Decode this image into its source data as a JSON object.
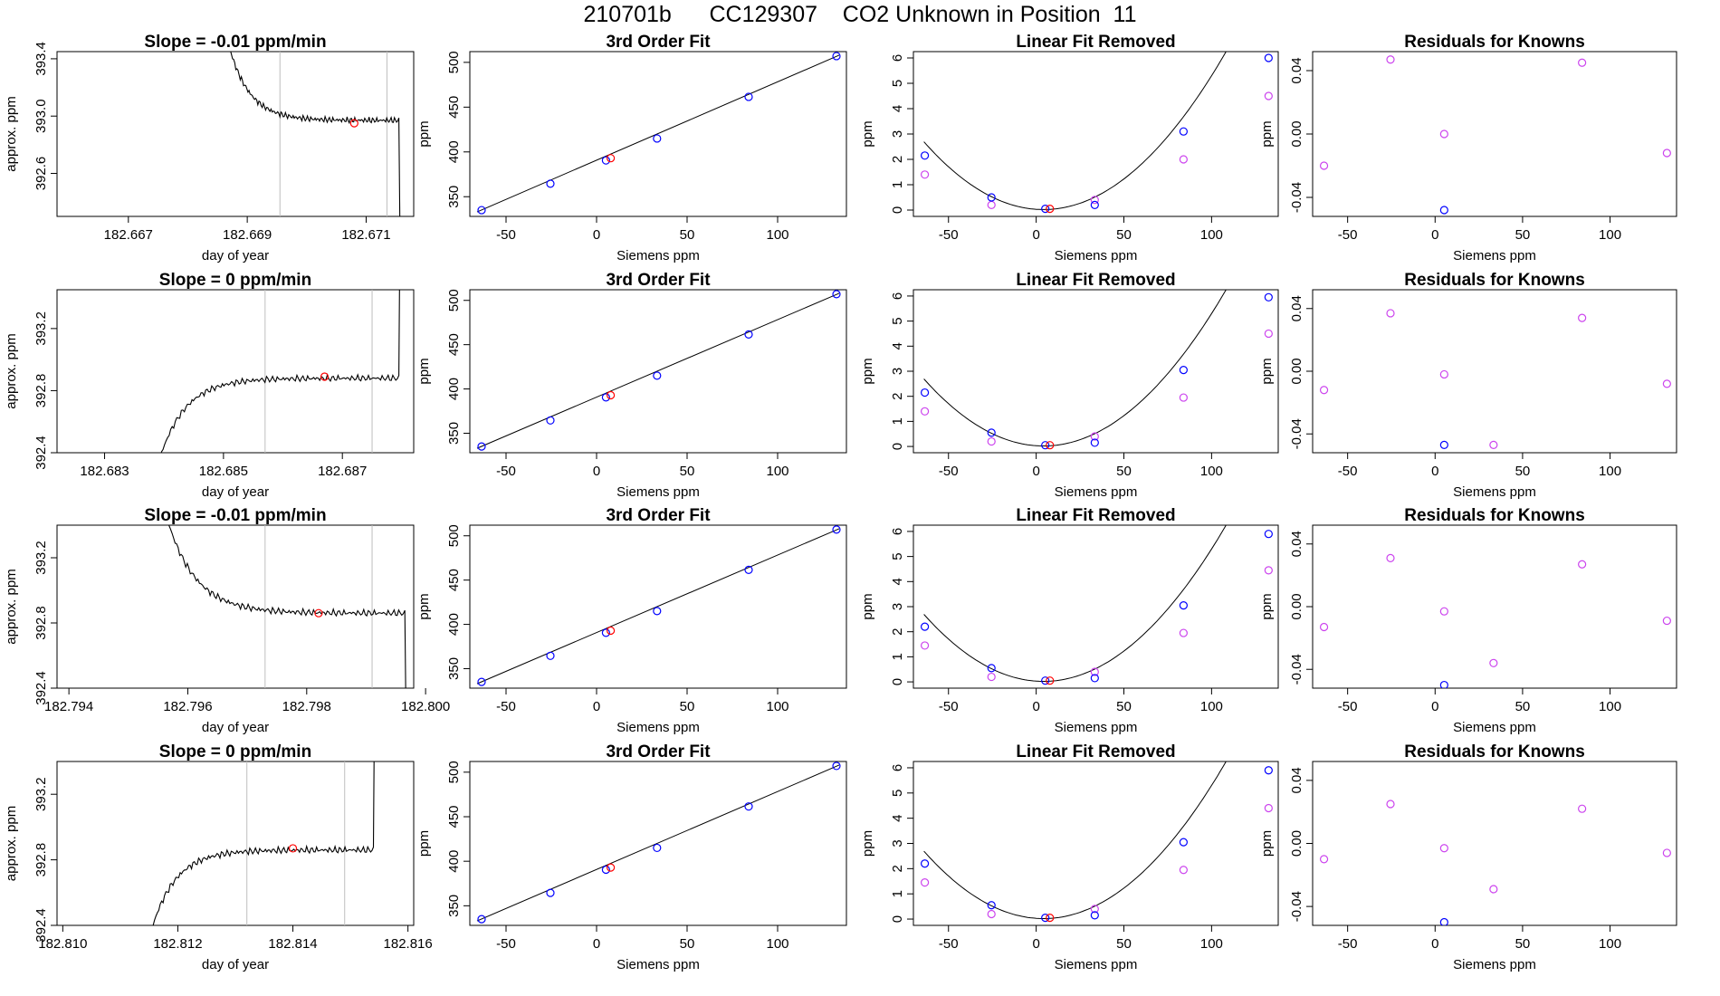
{
  "page": {
    "title": "210701b      CC129307    CO2 Unknown in Position  11"
  },
  "colors": {
    "line": "#000000",
    "guide": "#bebebe",
    "known": "#0000ff",
    "unknown": "#ff0000",
    "linear_removed": "#cc44ee",
    "residual": "#cc44ee"
  },
  "chart_data": [
    {
      "type": "line",
      "panel": "time-series-row-1",
      "title": "Slope =  -0.01  ppm/min",
      "xlabel": "day of year",
      "ylabel": "approx. ppm",
      "xlim": [
        182.6658,
        182.6718
      ],
      "ylim": [
        392.3,
        393.45
      ],
      "x_ticks": [
        182.667,
        182.669,
        182.671
      ],
      "x_tick_labels": [
        "182.667",
        "182.669",
        "182.671"
      ],
      "y_ticks": [
        392.6,
        393.0,
        393.4
      ],
      "y_tick_labels": [
        "392.6",
        "393.0",
        "393.4"
      ],
      "shape": "decay",
      "x_start": 182.6684,
      "x_end": 182.6716,
      "level": 392.97,
      "drop_x": 182.67155,
      "guides_x": [
        182.66955,
        182.67135
      ],
      "marker": [
        182.6708,
        392.95
      ]
    },
    {
      "type": "line",
      "panel": "time-series-row-2",
      "title": "Slope =  0  ppm/min",
      "xlabel": "day of year",
      "ylabel": "approx. ppm",
      "xlim": [
        182.6822,
        182.6882
      ],
      "ylim": [
        392.4,
        393.45
      ],
      "x_ticks": [
        182.683,
        182.685,
        182.687
      ],
      "x_tick_labels": [
        "182.683",
        "182.685",
        "182.687"
      ],
      "y_ticks": [
        392.4,
        392.8,
        393.2
      ],
      "y_tick_labels": [
        "392.4",
        "392.8",
        "393.2"
      ],
      "shape": "rise",
      "x_start": 182.6836,
      "x_end": 182.68795,
      "level": 392.88,
      "drop_x": 182.68795,
      "guides_x": [
        182.6857,
        182.6875
      ],
      "marker": [
        182.6867,
        392.89
      ]
    },
    {
      "type": "line",
      "panel": "time-series-row-3",
      "title": "Slope =  -0.01  ppm/min",
      "xlabel": "day of year",
      "ylabel": "approx. ppm",
      "xlim": [
        182.7938,
        182.7998
      ],
      "ylim": [
        392.4,
        393.4
      ],
      "x_ticks": [
        182.794,
        182.796,
        182.798,
        182.8
      ],
      "x_tick_labels": [
        "182.794",
        "182.796",
        "182.798",
        "182.800"
      ],
      "y_ticks": [
        392.4,
        392.8,
        393.2
      ],
      "y_tick_labels": [
        "392.4",
        "392.8",
        "393.2"
      ],
      "shape": "decay",
      "x_start": 182.7953,
      "x_end": 182.79965,
      "level": 392.86,
      "drop_x": 182.79965,
      "guides_x": [
        182.7973,
        182.7991
      ],
      "marker": [
        182.7982,
        392.86
      ]
    },
    {
      "type": "line",
      "panel": "time-series-row-4",
      "title": "Slope =  0  ppm/min",
      "xlabel": "day of year",
      "ylabel": "approx. ppm",
      "xlim": [
        182.8099,
        182.8161
      ],
      "ylim": [
        392.4,
        393.4
      ],
      "x_ticks": [
        182.81,
        182.812,
        182.814,
        182.816
      ],
      "x_tick_labels": [
        "182.810",
        "182.812",
        "182.814",
        "182.816"
      ],
      "y_ticks": [
        392.4,
        392.8,
        393.2
      ],
      "y_tick_labels": [
        "392.4",
        "392.8",
        "393.2"
      ],
      "shape": "rise",
      "x_start": 182.8112,
      "x_end": 182.8154,
      "level": 392.86,
      "drop_x": 182.8154,
      "guides_x": [
        182.8132,
        182.8149
      ],
      "marker": [
        182.814,
        392.87
      ]
    },
    {
      "type": "scatter",
      "panel": "third-order-fit-row-1",
      "title": "3rd Order Fit",
      "xlabel": "Siemens ppm",
      "ylabel": "ppm",
      "xlim": [
        -70,
        138
      ],
      "ylim": [
        328,
        512
      ],
      "x_ticks": [
        -50,
        0,
        50,
        100
      ],
      "y_ticks": [
        350,
        400,
        450,
        500
      ],
      "known_x": [
        -63.5,
        -25.5,
        5.2,
        33.4,
        84.0,
        132.5
      ],
      "known_y": [
        335.0,
        364.5,
        390.5,
        415.0,
        461.5,
        507.0
      ],
      "unknown": [
        7.8,
        393.0
      ],
      "fit_line": [
        [
          -66,
          333
        ],
        [
          134,
          508
        ]
      ]
    },
    {
      "type": "scatter",
      "panel": "third-order-fit-row-2",
      "title": "3rd Order Fit",
      "xlabel": "Siemens ppm",
      "ylabel": "ppm",
      "xlim": [
        -70,
        138
      ],
      "ylim": [
        328,
        512
      ],
      "x_ticks": [
        -50,
        0,
        50,
        100
      ],
      "y_ticks": [
        350,
        400,
        450,
        500
      ],
      "known_x": [
        -63.5,
        -25.5,
        5.2,
        33.4,
        84.0,
        132.5
      ],
      "known_y": [
        335.0,
        364.5,
        390.5,
        415.0,
        461.5,
        507.0
      ],
      "unknown": [
        7.8,
        392.9
      ],
      "fit_line": [
        [
          -66,
          333
        ],
        [
          134,
          508
        ]
      ]
    },
    {
      "type": "scatter",
      "panel": "third-order-fit-row-3",
      "title": "3rd Order Fit",
      "xlabel": "Siemens ppm",
      "ylabel": "ppm",
      "xlim": [
        -70,
        138
      ],
      "ylim": [
        328,
        512
      ],
      "x_ticks": [
        -50,
        0,
        50,
        100
      ],
      "y_ticks": [
        350,
        400,
        450,
        500
      ],
      "known_x": [
        -63.5,
        -25.5,
        5.2,
        33.4,
        84.0,
        132.5
      ],
      "known_y": [
        335.0,
        364.5,
        390.5,
        415.0,
        461.5,
        507.0
      ],
      "unknown": [
        7.8,
        392.9
      ],
      "fit_line": [
        [
          -66,
          333
        ],
        [
          134,
          508
        ]
      ]
    },
    {
      "type": "scatter",
      "panel": "third-order-fit-row-4",
      "title": "3rd Order Fit",
      "xlabel": "Siemens ppm",
      "ylabel": "ppm",
      "xlim": [
        -70,
        138
      ],
      "ylim": [
        328,
        512
      ],
      "x_ticks": [
        -50,
        0,
        50,
        100
      ],
      "y_ticks": [
        350,
        400,
        450,
        500
      ],
      "known_x": [
        -63.5,
        -25.5,
        5.2,
        33.4,
        84.0,
        132.5
      ],
      "known_y": [
        335.0,
        364.5,
        390.5,
        415.0,
        461.5,
        507.0
      ],
      "unknown": [
        7.8,
        392.9
      ],
      "fit_line": [
        [
          -66,
          333
        ],
        [
          134,
          508
        ]
      ]
    },
    {
      "type": "scatter",
      "panel": "linear-fit-removed-row-1",
      "title": "Linear Fit Removed",
      "xlabel": "Siemens ppm",
      "ylabel": "ppm",
      "xlim": [
        -70,
        138
      ],
      "ylim": [
        -0.25,
        6.25
      ],
      "x_ticks": [
        -50,
        0,
        50,
        100
      ],
      "y_ticks": [
        0,
        1,
        2,
        3,
        4,
        5,
        6
      ],
      "known_x": [
        -63.5,
        -25.5,
        5.2,
        33.4,
        84.0,
        132.5
      ],
      "known_y": [
        2.15,
        0.5,
        0.05,
        0.2,
        3.1,
        6.0
      ],
      "linear_removed_x": [
        -63.5,
        -25.5,
        33.4,
        84.0,
        132.5
      ],
      "linear_removed_y": [
        1.4,
        0.2,
        0.4,
        2.0,
        4.5
      ],
      "unknown": [
        7.8,
        0.05
      ],
      "curve": {
        "a": 0.000575,
        "b": -0.0048,
        "c": 0.03,
        "x_from": -64,
        "x_to": 133
      }
    },
    {
      "type": "scatter",
      "panel": "linear-fit-removed-row-2",
      "title": "Linear Fit Removed",
      "xlabel": "Siemens ppm",
      "ylabel": "ppm",
      "xlim": [
        -70,
        138
      ],
      "ylim": [
        -0.25,
        6.25
      ],
      "x_ticks": [
        -50,
        0,
        50,
        100
      ],
      "y_ticks": [
        0,
        1,
        2,
        3,
        4,
        5,
        6
      ],
      "known_x": [
        -63.5,
        -25.5,
        5.2,
        33.4,
        84.0,
        132.5
      ],
      "known_y": [
        2.15,
        0.55,
        0.05,
        0.15,
        3.05,
        5.95
      ],
      "linear_removed_x": [
        -63.5,
        -25.5,
        33.4,
        84.0,
        132.5
      ],
      "linear_removed_y": [
        1.4,
        0.2,
        0.4,
        1.95,
        4.5
      ],
      "unknown": [
        7.8,
        0.05
      ],
      "curve": {
        "a": 0.000575,
        "b": -0.0048,
        "c": 0.03,
        "x_from": -64,
        "x_to": 133
      }
    },
    {
      "type": "scatter",
      "panel": "linear-fit-removed-row-3",
      "title": "Linear Fit Removed",
      "xlabel": "Siemens ppm",
      "ylabel": "ppm",
      "xlim": [
        -70,
        138
      ],
      "ylim": [
        -0.25,
        6.25
      ],
      "x_ticks": [
        -50,
        0,
        50,
        100
      ],
      "y_ticks": [
        0,
        1,
        2,
        3,
        4,
        5,
        6
      ],
      "known_x": [
        -63.5,
        -25.5,
        5.2,
        33.4,
        84.0,
        132.5
      ],
      "known_y": [
        2.2,
        0.55,
        0.05,
        0.15,
        3.05,
        5.9
      ],
      "linear_removed_x": [
        -63.5,
        -25.5,
        33.4,
        84.0,
        132.5
      ],
      "linear_removed_y": [
        1.45,
        0.2,
        0.4,
        1.95,
        4.45
      ],
      "unknown": [
        7.8,
        0.05
      ],
      "curve": {
        "a": 0.000575,
        "b": -0.0048,
        "c": 0.03,
        "x_from": -64,
        "x_to": 133
      }
    },
    {
      "type": "scatter",
      "panel": "linear-fit-removed-row-4",
      "title": "Linear Fit Removed",
      "xlabel": "Siemens ppm",
      "ylabel": "ppm",
      "xlim": [
        -70,
        138
      ],
      "ylim": [
        -0.25,
        6.25
      ],
      "x_ticks": [
        -50,
        0,
        50,
        100
      ],
      "y_ticks": [
        0,
        1,
        2,
        3,
        4,
        5,
        6
      ],
      "known_x": [
        -63.5,
        -25.5,
        5.2,
        33.4,
        84.0,
        132.5
      ],
      "known_y": [
        2.2,
        0.55,
        0.05,
        0.15,
        3.05,
        5.9
      ],
      "linear_removed_x": [
        -63.5,
        -25.5,
        33.4,
        84.0,
        132.5
      ],
      "linear_removed_y": [
        1.45,
        0.2,
        0.4,
        1.95,
        4.4
      ],
      "unknown": [
        7.8,
        0.05
      ],
      "curve": {
        "a": 0.000575,
        "b": -0.0048,
        "c": 0.03,
        "x_from": -64,
        "x_to": 133
      }
    },
    {
      "type": "scatter",
      "panel": "residuals-row-1",
      "title": "Residuals for Knowns",
      "xlabel": "Siemens ppm",
      "ylabel": "ppm",
      "xlim": [
        -70,
        138
      ],
      "ylim": [
        -0.052,
        0.052
      ],
      "x_ticks": [
        -50,
        0,
        50,
        100
      ],
      "y_ticks": [
        -0.04,
        0.0,
        0.04
      ],
      "y_tick_labels": [
        "-0.04",
        "0.00",
        "0.04"
      ],
      "residual_x": [
        -63.5,
        -25.5,
        5.2,
        84.0,
        132.5
      ],
      "residual_y": [
        -0.02,
        0.047,
        0.0,
        0.045,
        -0.012
      ],
      "known_residual_x": [
        5.2
      ],
      "known_residual_y": [
        -0.048
      ]
    },
    {
      "type": "scatter",
      "panel": "residuals-row-2",
      "title": "Residuals for Knowns",
      "xlabel": "Siemens ppm",
      "ylabel": "ppm",
      "xlim": [
        -70,
        138
      ],
      "ylim": [
        -0.052,
        0.052
      ],
      "x_ticks": [
        -50,
        0,
        50,
        100
      ],
      "y_ticks": [
        -0.04,
        0.0,
        0.04
      ],
      "y_tick_labels": [
        "-0.04",
        "0.00",
        "0.04"
      ],
      "residual_x": [
        -63.5,
        -25.5,
        5.2,
        33.4,
        84.0,
        132.5
      ],
      "residual_y": [
        -0.012,
        0.037,
        -0.002,
        -0.047,
        0.034,
        -0.008
      ],
      "known_residual_x": [
        5.2
      ],
      "known_residual_y": [
        -0.047
      ]
    },
    {
      "type": "scatter",
      "panel": "residuals-row-3",
      "title": "Residuals for Knowns",
      "xlabel": "Siemens ppm",
      "ylabel": "ppm",
      "xlim": [
        -70,
        138
      ],
      "ylim": [
        -0.052,
        0.052
      ],
      "x_ticks": [
        -50,
        0,
        50,
        100
      ],
      "y_ticks": [
        -0.04,
        0.0,
        0.04
      ],
      "y_tick_labels": [
        "-0.04",
        "0.00",
        "0.04"
      ],
      "residual_x": [
        -63.5,
        -25.5,
        5.2,
        33.4,
        84.0,
        132.5
      ],
      "residual_y": [
        -0.013,
        0.031,
        -0.003,
        -0.036,
        0.027,
        -0.009
      ],
      "known_residual_x": [
        5.2
      ],
      "known_residual_y": [
        -0.05
      ]
    },
    {
      "type": "scatter",
      "panel": "residuals-row-4",
      "title": "Residuals for Knowns",
      "xlabel": "Siemens ppm",
      "ylabel": "ppm",
      "xlim": [
        -70,
        138
      ],
      "ylim": [
        -0.052,
        0.052
      ],
      "x_ticks": [
        -50,
        0,
        50,
        100
      ],
      "y_ticks": [
        -0.04,
        0.0,
        0.04
      ],
      "y_tick_labels": [
        "-0.04",
        "0.00",
        "0.04"
      ],
      "residual_x": [
        -63.5,
        -25.5,
        5.2,
        33.4,
        84.0,
        132.5
      ],
      "residual_y": [
        -0.01,
        0.025,
        -0.003,
        -0.029,
        0.022,
        -0.006
      ],
      "known_residual_x": [
        5.2
      ],
      "known_residual_y": [
        -0.05
      ]
    }
  ]
}
